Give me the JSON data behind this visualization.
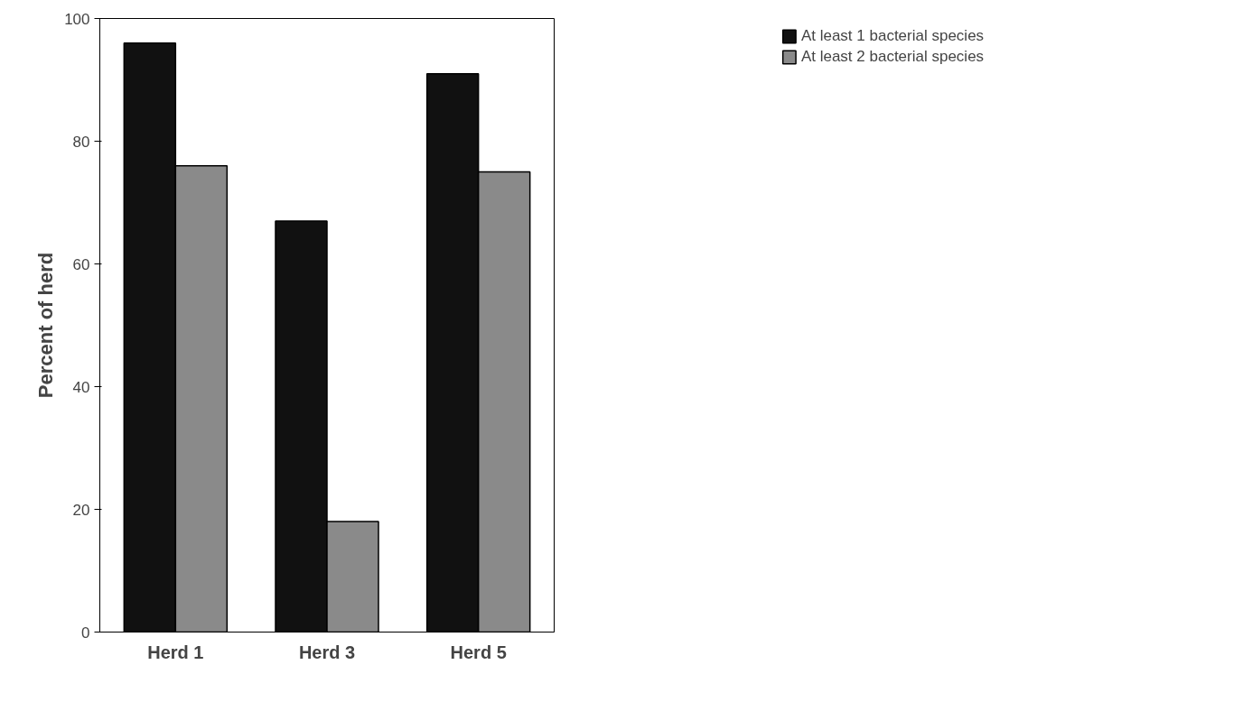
{
  "chart_data": {
    "type": "bar",
    "ylabel": "Percent of herd",
    "categories": [
      "Herd 1",
      "Herd 3",
      "Herd 5"
    ],
    "series": [
      {
        "name": "At least 1 bacterial species",
        "color": "#111111",
        "values": [
          96,
          67,
          91
        ]
      },
      {
        "name": "At least 2 bacterial species",
        "color": "#8a8a8a",
        "values": [
          76,
          18,
          75
        ]
      }
    ],
    "ylim": [
      0,
      100
    ],
    "yticks": [
      0,
      20,
      40,
      60,
      80,
      100
    ],
    "grid": false,
    "legend": "top right"
  }
}
